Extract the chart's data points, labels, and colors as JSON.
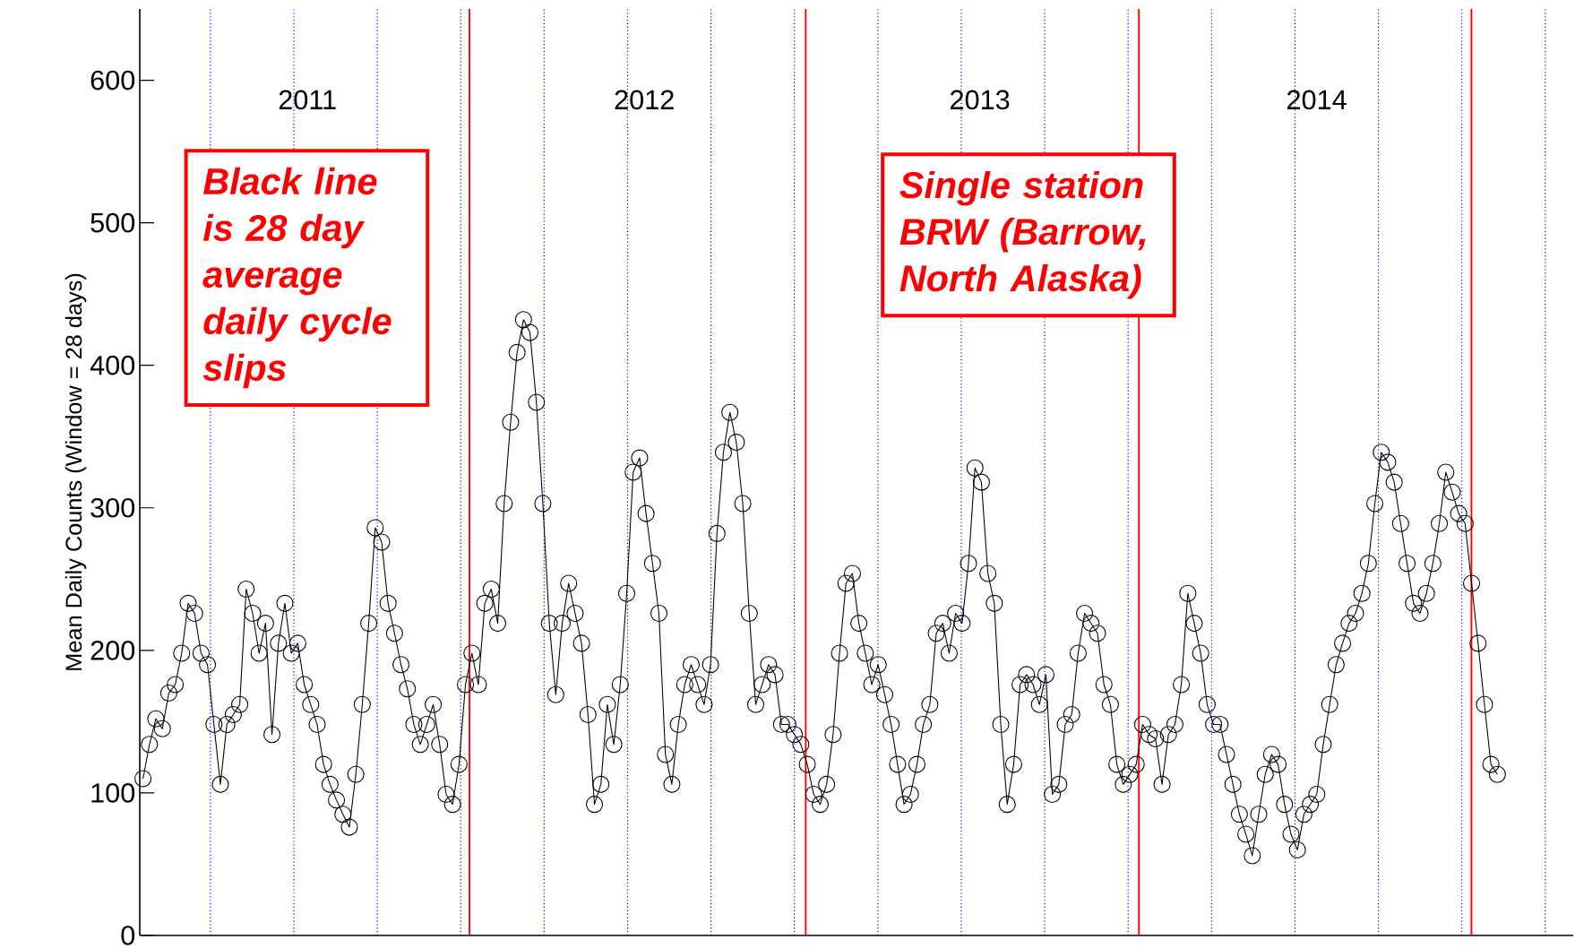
{
  "chart_data": {
    "type": "line",
    "ylabel": "Mean Daily Counts (Window = 28 days)",
    "ylim": [
      0,
      650
    ],
    "yticks": [
      0,
      100,
      200,
      300,
      400,
      500,
      600
    ],
    "tick_labels": "y",
    "marker": "circle",
    "line_style": "solid",
    "annotations": [
      "2011",
      "2012",
      "2013",
      "2014",
      "Black line is 28 day average daily cycle slips",
      "Single station BRW (Barrow, North Alaska)"
    ],
    "categories": [
      null,
      null,
      null,
      null,
      null,
      null,
      null,
      null,
      null,
      null,
      null,
      null,
      null,
      null,
      null,
      null,
      null,
      null,
      null,
      null,
      null,
      null,
      null,
      null,
      null,
      null,
      null,
      null,
      null,
      null,
      null,
      null,
      null,
      null,
      null,
      null,
      null,
      null,
      null,
      null,
      null,
      null,
      null,
      null,
      null,
      null,
      null,
      null,
      null,
      null,
      null,
      null,
      null,
      null,
      null,
      null,
      null,
      null,
      null,
      null,
      null,
      null,
      null,
      null,
      null,
      null,
      null,
      null,
      null,
      null,
      null,
      null,
      null,
      null,
      null,
      null,
      null,
      null,
      null,
      null,
      null,
      null,
      null,
      null,
      null,
      null,
      null,
      null,
      null,
      null,
      null,
      null,
      null,
      null,
      null,
      null,
      null,
      null,
      null,
      null,
      null,
      null,
      null,
      null,
      null,
      null,
      null,
      null,
      null,
      null,
      null,
      null,
      null,
      null,
      null,
      null,
      null,
      null,
      null,
      null,
      null,
      null,
      null,
      null,
      null,
      null,
      null,
      null,
      null,
      null,
      null,
      null,
      null,
      null,
      null,
      null,
      null,
      null,
      null,
      null,
      null,
      null,
      null,
      null,
      null,
      null,
      null,
      null,
      null,
      null,
      null,
      null,
      null,
      null,
      null,
      null,
      null,
      null,
      null,
      null,
      null,
      null,
      null,
      null,
      null,
      null,
      null,
      null,
      null,
      null,
      null,
      null,
      null,
      null,
      null,
      null,
      null,
      null,
      null,
      null,
      null,
      null,
      null,
      null,
      null,
      null,
      null,
      null,
      null,
      null,
      null,
      null,
      null,
      null,
      null,
      null,
      null,
      null,
      null,
      null,
      null,
      null,
      null,
      null,
      null,
      null,
      null,
      null,
      null,
      null,
      null
    ],
    "series": [
      {
        "color": "#000000",
        "values": [
          110,
          134,
          152,
          145,
          170,
          176,
          198,
          233,
          226,
          198,
          190,
          148,
          106,
          148,
          155,
          162,
          243,
          226,
          198,
          219,
          141,
          205,
          233,
          198,
          205,
          176,
          162,
          148,
          120,
          106,
          95,
          85,
          76,
          113,
          162,
          219,
          286,
          276,
          233,
          212,
          190,
          173,
          148,
          134,
          148,
          162,
          134,
          99,
          92,
          120,
          176,
          198,
          176,
          233,
          243,
          219,
          303,
          360,
          409,
          432,
          423,
          374,
          303,
          219,
          169,
          219,
          247,
          226,
          205,
          155,
          92,
          106,
          162,
          134,
          176,
          240,
          325,
          335,
          296,
          261,
          226,
          127,
          106,
          148,
          176,
          190,
          176,
          162,
          190,
          282,
          339,
          367,
          346,
          303,
          226,
          162,
          176,
          190,
          183,
          148,
          148,
          141,
          134,
          120,
          99,
          92,
          106,
          141,
          198,
          247,
          254,
          219,
          198,
          176,
          190,
          169,
          148,
          120,
          92,
          99,
          120,
          148,
          162,
          212,
          219,
          198,
          226,
          219,
          261,
          328,
          318,
          254,
          233,
          148,
          92,
          120,
          176,
          183,
          176,
          162,
          183,
          99,
          106,
          148,
          155,
          198,
          226,
          219,
          212,
          176,
          162,
          120,
          106,
          113,
          120,
          148,
          141,
          138,
          106,
          141,
          148,
          176,
          240,
          219,
          198,
          162,
          148,
          148,
          127,
          106,
          85,
          71,
          56,
          85,
          113,
          127,
          120,
          92,
          71,
          60,
          85,
          92,
          99,
          134,
          162,
          190,
          205,
          219,
          226,
          240,
          261,
          303,
          339,
          332,
          318,
          289,
          261,
          233,
          226,
          240,
          261,
          289,
          325,
          311,
          296,
          289,
          247,
          205,
          162,
          120,
          113
        ]
      }
    ]
  }
}
